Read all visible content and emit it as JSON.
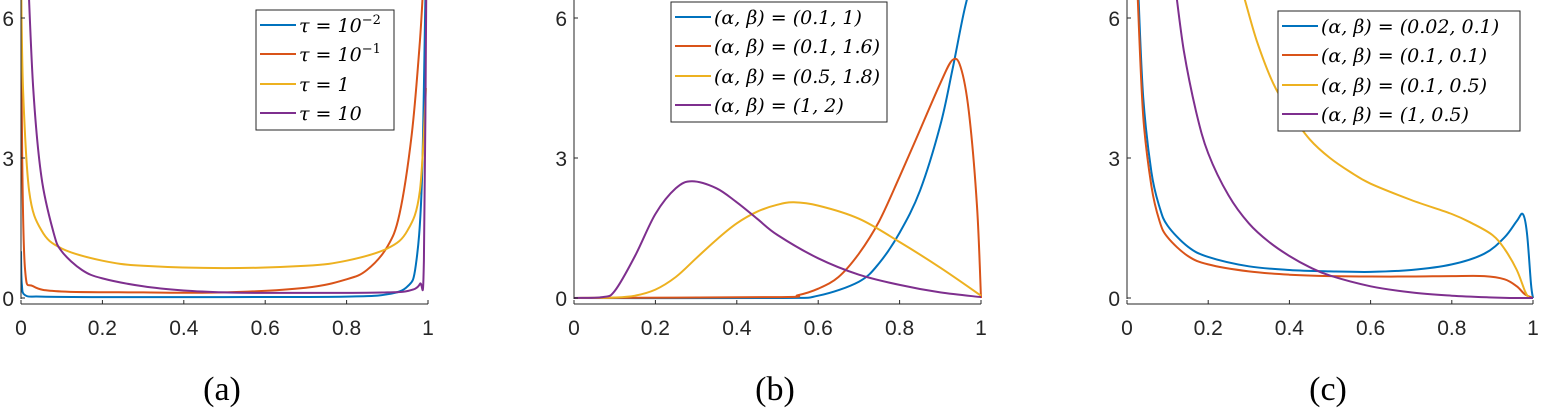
{
  "colors": {
    "blue": "#0072BD",
    "orange": "#D95319",
    "yellow": "#EDB120",
    "purple": "#7E2F8E",
    "axis": "#262626",
    "legend_border": "#262626"
  },
  "chart_data": [
    {
      "type": "line",
      "caption": "(a)",
      "xlim": [
        0,
        1
      ],
      "ylim": [
        0,
        6.4
      ],
      "xticks": [
        "0",
        "0.2",
        "0.4",
        "0.6",
        "0.8",
        "1"
      ],
      "yticks": [
        "0",
        "3",
        "6"
      ],
      "legend_position": "upper right",
      "grid": false,
      "series": [
        {
          "name": "τ = 10^-2",
          "legend": "τ = 10⁻²",
          "color": "#0072BD",
          "x": [
            0,
            0.002,
            0.01,
            0.05,
            0.2,
            0.5,
            0.8,
            0.9,
            0.95,
            0.97,
            0.985,
            0.995,
            1
          ],
          "y": [
            1.0,
            0.3,
            0.06,
            0.03,
            0.02,
            0.02,
            0.03,
            0.08,
            0.25,
            0.7,
            2.5,
            7,
            7
          ]
        },
        {
          "name": "τ = 10^-1",
          "legend": "τ = 10⁻¹",
          "color": "#D95319",
          "x": [
            0,
            0.003,
            0.01,
            0.03,
            0.1,
            0.3,
            0.5,
            0.7,
            0.8,
            0.85,
            0.9,
            0.93,
            0.96,
            0.98,
            0.99
          ],
          "y": [
            7,
            3,
            0.6,
            0.25,
            0.14,
            0.12,
            0.12,
            0.22,
            0.4,
            0.6,
            1.1,
            1.8,
            3.5,
            5.5,
            7
          ]
        },
        {
          "name": "τ = 1",
          "legend": "τ = 1",
          "color": "#EDB120",
          "x": [
            0,
            0.005,
            0.02,
            0.05,
            0.1,
            0.2,
            0.3,
            0.5,
            0.7,
            0.8,
            0.9,
            0.95,
            0.98,
            0.995
          ],
          "y": [
            7,
            4.5,
            2.3,
            1.45,
            1.06,
            0.8,
            0.69,
            0.64,
            0.69,
            0.8,
            1.06,
            1.45,
            2.3,
            4.5
          ]
        },
        {
          "name": "τ = 10",
          "legend": "τ = 10",
          "color": "#7E2F8E",
          "x": [
            0.017,
            0.03,
            0.05,
            0.08,
            0.1,
            0.15,
            0.2,
            0.3,
            0.4,
            0.5,
            0.6,
            0.8,
            0.9,
            0.95,
            0.98,
            0.99,
            0.996
          ],
          "y": [
            7,
            4.5,
            2.6,
            1.4,
            1.0,
            0.6,
            0.42,
            0.25,
            0.16,
            0.12,
            0.11,
            0.11,
            0.12,
            0.15,
            0.3,
            0.8,
            7
          ]
        }
      ]
    },
    {
      "type": "line",
      "caption": "(b)",
      "xlim": [
        0,
        1
      ],
      "ylim": [
        0,
        6.4
      ],
      "xticks": [
        "0",
        "0.2",
        "0.4",
        "0.6",
        "0.8",
        "1"
      ],
      "yticks": [
        "0",
        "3",
        "6"
      ],
      "legend_position": "upper center",
      "grid": false,
      "series": [
        {
          "name": "(α, β) = (0.1, 1)",
          "legend": "(α, β) = (0.1, 1)",
          "color": "#0072BD",
          "x": [
            0,
            0.5,
            0.6,
            0.7,
            0.75,
            0.8,
            0.85,
            0.9,
            0.93,
            0.96,
            0.99
          ],
          "y": [
            0,
            0,
            0.05,
            0.35,
            0.75,
            1.4,
            2.3,
            3.7,
            4.9,
            6.2,
            7.2
          ]
        },
        {
          "name": "(α, β) = (0.1, 1.6)",
          "legend": "(α, β) = (0.1, 1.6)",
          "color": "#D95319",
          "x": [
            0,
            0.5,
            0.55,
            0.6,
            0.65,
            0.7,
            0.75,
            0.8,
            0.85,
            0.9,
            0.93,
            0.95,
            0.97,
            0.99,
            1.0
          ],
          "y": [
            0,
            0.02,
            0.06,
            0.2,
            0.45,
            0.95,
            1.65,
            2.6,
            3.6,
            4.6,
            5.1,
            4.95,
            4.0,
            2.0,
            0
          ]
        },
        {
          "name": "(α, β) = (0.5, 1.8)",
          "legend": "(α, β) = (0.5, 1.8)",
          "color": "#EDB120",
          "x": [
            0,
            0.1,
            0.15,
            0.2,
            0.25,
            0.3,
            0.35,
            0.4,
            0.45,
            0.5,
            0.54,
            0.6,
            0.7,
            0.8,
            0.9,
            1.0
          ],
          "y": [
            0,
            0.01,
            0.05,
            0.18,
            0.45,
            0.85,
            1.25,
            1.6,
            1.85,
            2.0,
            2.05,
            1.98,
            1.7,
            1.2,
            0.65,
            0.05
          ]
        },
        {
          "name": "(α, β) = (1, 2)",
          "legend": "(α, β) = (1, 2)",
          "color": "#7E2F8E",
          "x": [
            0,
            0.07,
            0.1,
            0.15,
            0.2,
            0.25,
            0.29,
            0.35,
            0.4,
            0.45,
            0.5,
            0.6,
            0.7,
            0.8,
            0.9,
            1.0
          ],
          "y": [
            0,
            0.02,
            0.15,
            0.9,
            1.8,
            2.35,
            2.5,
            2.35,
            2.05,
            1.7,
            1.35,
            0.85,
            0.5,
            0.28,
            0.12,
            0.02
          ]
        }
      ]
    },
    {
      "type": "line",
      "caption": "(c)",
      "xlim": [
        0,
        1
      ],
      "ylim": [
        0,
        6.4
      ],
      "xticks": [
        "0",
        "0.2",
        "0.4",
        "0.6",
        "0.8",
        "1"
      ],
      "yticks": [
        "0",
        "3",
        "6"
      ],
      "legend_position": "upper right",
      "grid": false,
      "series": [
        {
          "name": "(α, β) = (0.02, 0.1)",
          "legend": "(α, β) = (0.02, 0.1)",
          "color": "#0072BD",
          "x": [
            0.028,
            0.04,
            0.06,
            0.08,
            0.1,
            0.15,
            0.2,
            0.3,
            0.4,
            0.5,
            0.6,
            0.7,
            0.8,
            0.88,
            0.93,
            0.96,
            0.975,
            0.985,
            0.995,
            1.0
          ],
          "y": [
            6.5,
            4.3,
            2.7,
            1.95,
            1.55,
            1.1,
            0.88,
            0.68,
            0.6,
            0.57,
            0.56,
            0.6,
            0.72,
            0.95,
            1.3,
            1.65,
            1.8,
            1.4,
            0.3,
            0
          ]
        },
        {
          "name": "(α, β) = (0.1, 0.1)",
          "legend": "(α, β) = (0.1, 0.1)",
          "color": "#D95319",
          "x": [
            0.026,
            0.04,
            0.06,
            0.08,
            0.1,
            0.15,
            0.2,
            0.3,
            0.4,
            0.5,
            0.6,
            0.7,
            0.8,
            0.88,
            0.93,
            0.96,
            0.98,
            1.0
          ],
          "y": [
            6.5,
            3.9,
            2.4,
            1.65,
            1.3,
            0.9,
            0.72,
            0.57,
            0.5,
            0.47,
            0.46,
            0.46,
            0.47,
            0.47,
            0.4,
            0.25,
            0.08,
            0
          ]
        },
        {
          "name": "(α, β) = (0.1, 0.5)",
          "legend": "(α, β) = (0.1, 0.5)",
          "color": "#EDB120",
          "x": [
            0.29,
            0.32,
            0.36,
            0.4,
            0.45,
            0.5,
            0.55,
            0.6,
            0.7,
            0.8,
            0.85,
            0.9,
            0.93,
            0.96,
            0.98,
            0.99
          ],
          "y": [
            6.4,
            5.5,
            4.6,
            4.0,
            3.4,
            3.0,
            2.7,
            2.45,
            2.1,
            1.8,
            1.6,
            1.35,
            1.05,
            0.6,
            0.15,
            0
          ]
        },
        {
          "name": "(α, β) = (1, 0.5)",
          "legend": "(α, β) = (1, 0.5)",
          "color": "#7E2F8E",
          "x": [
            0.12,
            0.14,
            0.17,
            0.2,
            0.25,
            0.3,
            0.35,
            0.4,
            0.45,
            0.5,
            0.6,
            0.7,
            0.8,
            0.9,
            0.95,
            1.0
          ],
          "y": [
            6.6,
            5.3,
            4.0,
            3.1,
            2.2,
            1.6,
            1.2,
            0.9,
            0.66,
            0.48,
            0.25,
            0.12,
            0.05,
            0.01,
            0,
            0
          ]
        }
      ]
    }
  ],
  "panels": [
    {
      "caption": "(a)",
      "xticks": [
        "0",
        "0.2",
        "0.4",
        "0.6",
        "0.8",
        "1"
      ],
      "yticks": [
        "0",
        "3",
        "6"
      ],
      "legend": [
        "τ = 10",
        "τ = 10",
        "τ = 1",
        "τ = 10"
      ],
      "legend_sup": [
        "−2",
        "−1",
        "",
        ""
      ]
    },
    {
      "caption": "(b)",
      "xticks": [
        "0",
        "0.2",
        "0.4",
        "0.6",
        "0.8",
        "1"
      ],
      "yticks": [
        "0",
        "3",
        "6"
      ],
      "legend": [
        "(α, β) = (0.1, 1)",
        "(α, β) = (0.1, 1.6)",
        "(α, β) = (0.5, 1.8)",
        "(α, β) = (1, 2)"
      ]
    },
    {
      "caption": "(c)",
      "xticks": [
        "0",
        "0.2",
        "0.4",
        "0.6",
        "0.8",
        "1"
      ],
      "yticks": [
        "0",
        "3",
        "6"
      ],
      "legend": [
        "(α, β) = (0.02, 0.1)",
        "(α, β) = (0.1, 0.1)",
        "(α, β) = (0.1, 0.5)",
        "(α, β) = (1, 0.5)"
      ]
    }
  ]
}
